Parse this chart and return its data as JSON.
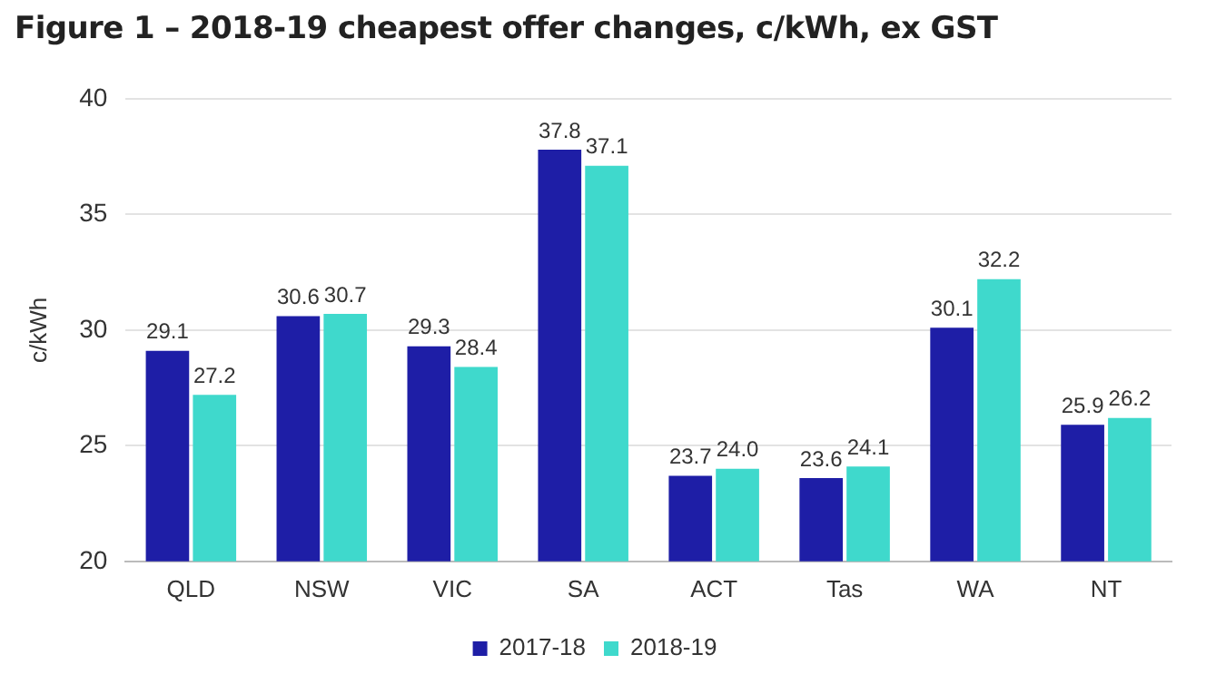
{
  "chart_data": {
    "type": "bar",
    "title": "Figure 1 – 2018-19 cheapest offer changes, c/kWh, ex GST",
    "ylabel": "c/kWh",
    "categories": [
      "QLD",
      "NSW",
      "VIC",
      "SA",
      "ACT",
      "Tas",
      "WA",
      "NT"
    ],
    "series": [
      {
        "name": "2017-18",
        "color": "#1e1ea6",
        "values": [
          29.1,
          30.6,
          29.3,
          37.8,
          23.7,
          23.6,
          30.1,
          25.9
        ],
        "value_labels": [
          "29.1",
          "30.6",
          "29.3",
          "37.8",
          "23.7",
          "23.6",
          "30.1",
          "25.9"
        ]
      },
      {
        "name": "2018-19",
        "color": "#3fd9cc",
        "values": [
          27.2,
          30.7,
          28.4,
          37.1,
          24.0,
          24.1,
          32.2,
          26.2
        ],
        "value_labels": [
          "27.2",
          "30.7",
          "28.4",
          "37.1",
          "24.0",
          "24.1",
          "32.2",
          "26.2"
        ]
      }
    ],
    "ylim": [
      20,
      40
    ],
    "yticks": [
      20,
      25,
      30,
      35,
      40
    ],
    "grid": "y",
    "legend": "bottom"
  }
}
